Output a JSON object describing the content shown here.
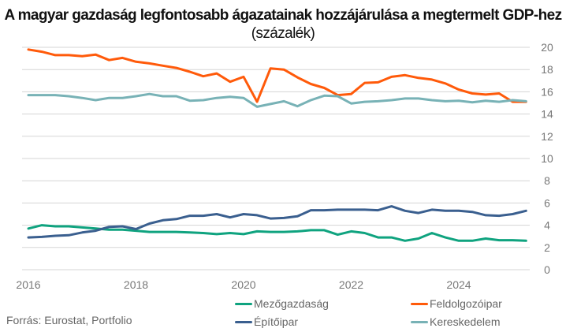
{
  "title": {
    "main": "A magyar gazdaság legfontosabb ágazatainak hozzájárulása a megtermelt GDP-hez",
    "unit": "(százalék)"
  },
  "source": "Forrás: Eurostat, Portfolio",
  "chart_data": {
    "type": "line",
    "title": "A magyar gazdaság legfontosabb ágazatainak hozzájárulása a megtermelt GDP-hez (százalék)",
    "xlabel": "",
    "ylabel": "",
    "x_tick_labels": [
      "2016",
      "2018",
      "2020",
      "2022",
      "2024"
    ],
    "y_tick_labels": [
      "0",
      "2",
      "4",
      "6",
      "8",
      "10",
      "12",
      "14",
      "16",
      "18",
      "20"
    ],
    "ylim": [
      0,
      20
    ],
    "xlim": [
      2016,
      2025.25
    ],
    "y_axis_side": "right",
    "grid": true,
    "legend_position": "bottom",
    "x": [
      2016.0,
      2016.25,
      2016.5,
      2016.75,
      2017.0,
      2017.25,
      2017.5,
      2017.75,
      2018.0,
      2018.25,
      2018.5,
      2018.75,
      2019.0,
      2019.25,
      2019.5,
      2019.75,
      2020.0,
      2020.25,
      2020.5,
      2020.75,
      2021.0,
      2021.25,
      2021.5,
      2021.75,
      2022.0,
      2022.25,
      2022.5,
      2022.75,
      2023.0,
      2023.25,
      2023.5,
      2023.75,
      2024.0,
      2024.25,
      2024.5,
      2024.75,
      2025.0,
      2025.25
    ],
    "series": [
      {
        "name": "Mezőgazdaság",
        "color": "#0fa37f",
        "values": [
          3.7,
          4.0,
          3.9,
          3.9,
          3.8,
          3.7,
          3.6,
          3.6,
          3.5,
          3.4,
          3.4,
          3.4,
          3.35,
          3.3,
          3.2,
          3.3,
          3.2,
          3.45,
          3.4,
          3.4,
          3.45,
          3.55,
          3.55,
          3.15,
          3.45,
          3.3,
          2.9,
          2.9,
          2.6,
          2.8,
          3.3,
          2.9,
          2.6,
          2.6,
          2.8,
          2.65,
          2.65,
          2.6
        ]
      },
      {
        "name": "Feldolgozóipar",
        "color": "#ff5a0a",
        "values": [
          19.8,
          19.6,
          19.3,
          19.3,
          19.2,
          19.35,
          18.85,
          19.05,
          18.7,
          18.55,
          18.35,
          18.15,
          17.8,
          17.4,
          17.65,
          16.9,
          17.35,
          15.1,
          18.1,
          18.0,
          17.3,
          16.7,
          16.35,
          15.7,
          15.8,
          16.8,
          16.85,
          17.35,
          17.5,
          17.25,
          17.1,
          16.75,
          16.2,
          15.85,
          15.75,
          15.85,
          15.1,
          15.1
        ]
      },
      {
        "name": "Építőipar",
        "color": "#3a5f8f",
        "values": [
          2.9,
          2.95,
          3.05,
          3.1,
          3.35,
          3.5,
          3.85,
          3.9,
          3.65,
          4.15,
          4.45,
          4.55,
          4.85,
          4.85,
          5.0,
          4.7,
          5.0,
          4.9,
          4.6,
          4.65,
          4.8,
          5.35,
          5.35,
          5.4,
          5.4,
          5.4,
          5.35,
          5.7,
          5.3,
          5.1,
          5.4,
          5.3,
          5.3,
          5.2,
          4.9,
          4.85,
          5.0,
          5.3
        ]
      },
      {
        "name": "Kereskedelem",
        "color": "#78b2b6",
        "values": [
          15.7,
          15.7,
          15.7,
          15.6,
          15.45,
          15.25,
          15.45,
          15.45,
          15.6,
          15.8,
          15.6,
          15.6,
          15.2,
          15.25,
          15.45,
          15.55,
          15.45,
          14.65,
          14.9,
          15.15,
          14.7,
          15.25,
          15.65,
          15.6,
          14.95,
          15.1,
          15.15,
          15.25,
          15.4,
          15.4,
          15.25,
          15.15,
          15.2,
          15.05,
          15.2,
          15.1,
          15.25,
          15.15
        ]
      }
    ]
  }
}
